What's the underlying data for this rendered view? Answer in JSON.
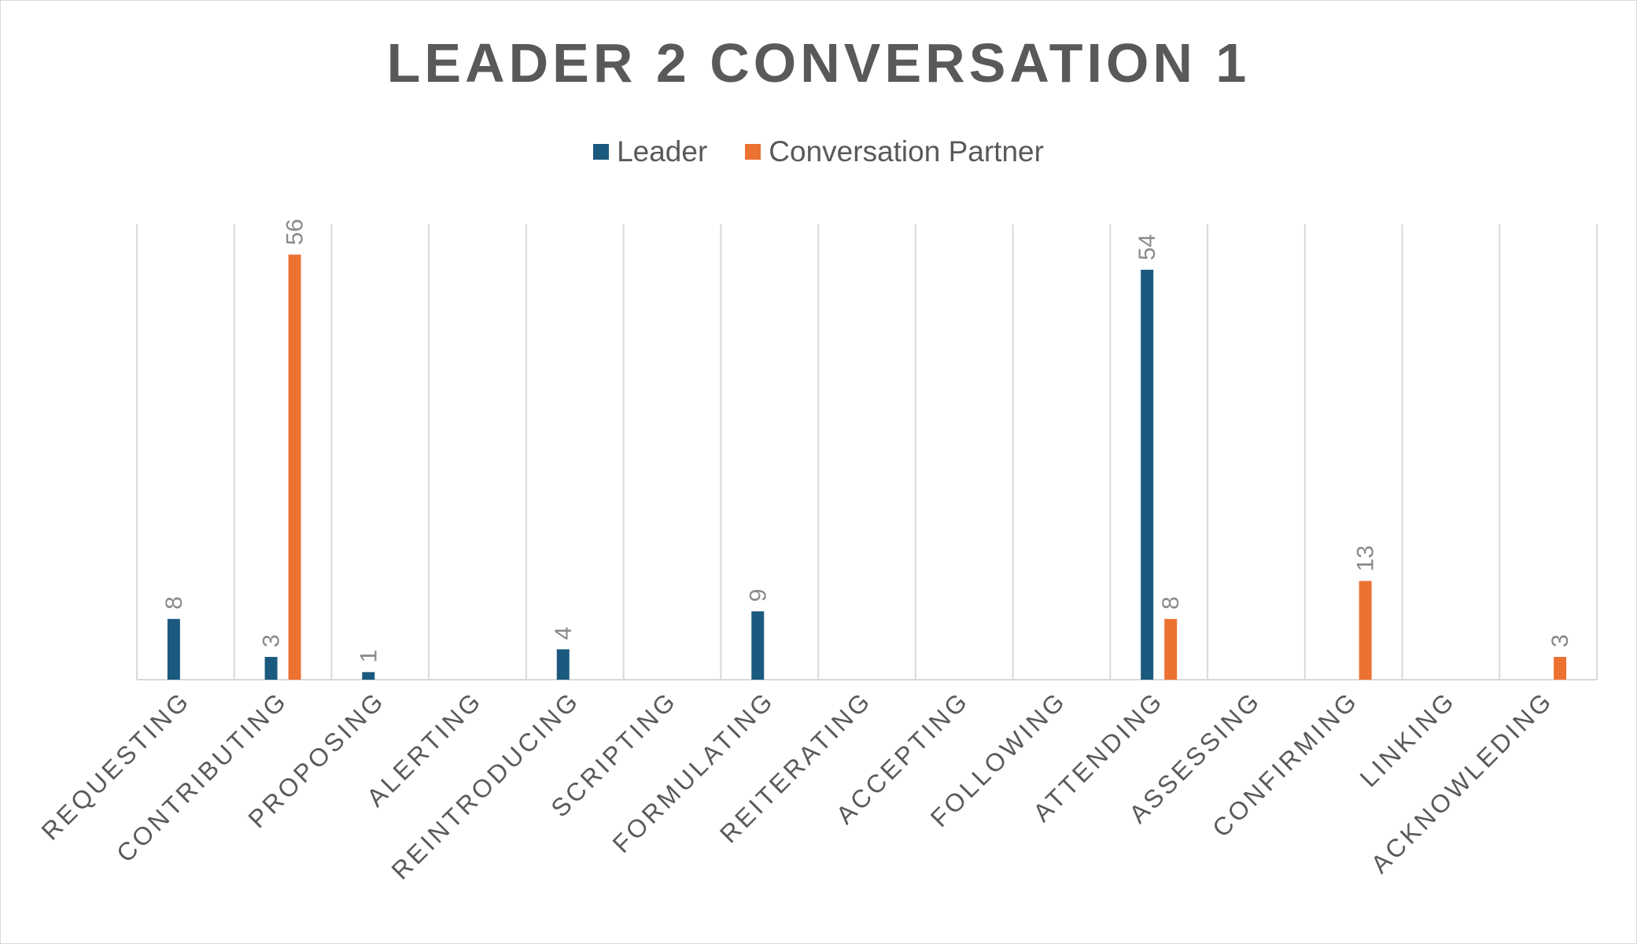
{
  "chart_data": {
    "type": "bar",
    "title": "LEADER 2 CONVERSATION 1",
    "categories": [
      "REQUESTING",
      "CONTRIBUTING",
      "PROPOSING",
      "ALERTING",
      "REINTRODUCING",
      "SCRIPTING",
      "FORMULATING",
      "REITERATING",
      "ACCEPTING",
      "FOLLOWING",
      "ATTENDING",
      "ASSESSING",
      "CONFIRMING",
      "LINKING",
      "ACKNOWLEDING"
    ],
    "series": [
      {
        "name": "Leader",
        "color": "#1b5a7e",
        "values": [
          8,
          3,
          1,
          null,
          4,
          null,
          9,
          null,
          null,
          null,
          54,
          null,
          null,
          null,
          null
        ]
      },
      {
        "name": "Conversation Partner",
        "color": "#ec7232",
        "values": [
          null,
          56,
          null,
          null,
          null,
          null,
          null,
          null,
          null,
          null,
          8,
          null,
          13,
          null,
          3
        ]
      }
    ],
    "ylim": [
      0,
      60
    ],
    "grid": "vertical category separators",
    "legend_position": "top-center",
    "xlabel": "",
    "ylabel": ""
  }
}
